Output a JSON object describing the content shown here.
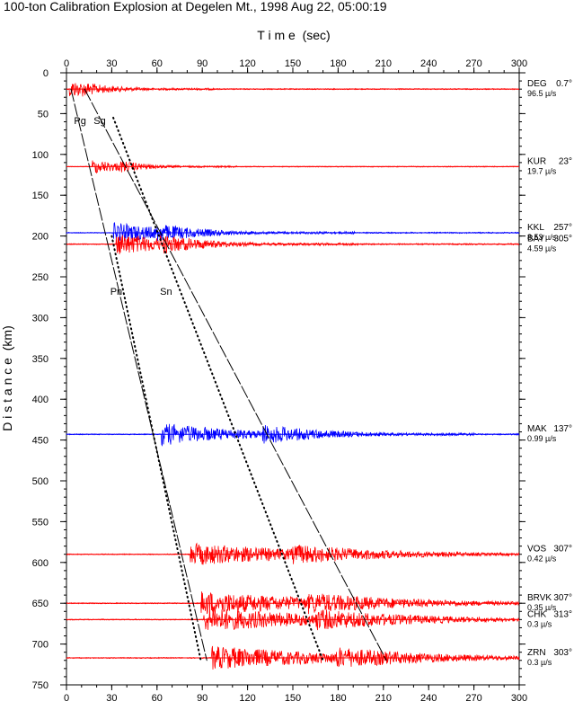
{
  "chart_data": {
    "type": "line",
    "title": "100-ton Calibration Explosion at Degelen Mt., 1998 Aug 22, 05:00:19",
    "xlabel": "T i m e  (sec)",
    "ylabel": "D i s t a n c e  (km)",
    "xlim": [
      0,
      300
    ],
    "ylim": [
      0,
      750
    ],
    "x_ticks": [
      0,
      30,
      60,
      90,
      120,
      150,
      180,
      210,
      240,
      270,
      300
    ],
    "y_ticks": [
      0,
      50,
      100,
      150,
      200,
      250,
      300,
      350,
      400,
      450,
      500,
      550,
      600,
      650,
      700,
      750
    ],
    "grid": false,
    "series": [
      {
        "station": "DEG",
        "azimuth": "0.7°",
        "amp": "96.5 µ/s",
        "distance_km": 20,
        "color": "#ff0000",
        "onset_sec": 2,
        "duration_sec": 60,
        "secondary_sec": 10,
        "amplitude_km": 11
      },
      {
        "station": "KUR",
        "azimuth": "23°",
        "amp": "19.7 µ/s",
        "distance_km": 115,
        "color": "#ff0000",
        "onset_sec": 17,
        "duration_sec": 60,
        "secondary_sec": 35,
        "amplitude_km": 9
      },
      {
        "station": "KKL",
        "azimuth": "257°",
        "amp": "8.53 µ/s",
        "distance_km": 196,
        "color": "#0000ff",
        "onset_sec": 31,
        "duration_sec": 100,
        "secondary_sec": 60,
        "amplitude_km": 13
      },
      {
        "station": "BAY",
        "azimuth": "305°",
        "amp": "4.59 µ/s",
        "distance_km": 210,
        "color": "#ff0000",
        "onset_sec": 33,
        "duration_sec": 100,
        "secondary_sec": 62,
        "amplitude_km": 14
      },
      {
        "station": "MAK",
        "azimuth": "137°",
        "amp": "0.99 µ/s",
        "distance_km": 443,
        "color": "#0000ff",
        "onset_sec": 63,
        "duration_sec": 130,
        "secondary_sec": 130,
        "amplitude_km": 14
      },
      {
        "station": "VOS",
        "azimuth": "307°",
        "amp": "0.42 µ/s",
        "distance_km": 590,
        "color": "#ff0000",
        "onset_sec": 82,
        "duration_sec": 200,
        "secondary_sec": 150,
        "amplitude_km": 14
      },
      {
        "station": "BRVK",
        "azimuth": "307°",
        "amp": "0.35 µ/s",
        "distance_km": 650,
        "color": "#ff0000",
        "onset_sec": 89,
        "duration_sec": 211,
        "secondary_sec": 160,
        "amplitude_km": 15
      },
      {
        "station": "CHK",
        "azimuth": "313°",
        "amp": "0.3 µ/s",
        "distance_km": 670,
        "color": "#ff0000",
        "onset_sec": 91,
        "duration_sec": 209,
        "secondary_sec": 165,
        "amplitude_km": 15
      },
      {
        "station": "ZRN",
        "azimuth": "303°",
        "amp": "0.3 µ/s",
        "distance_km": 717,
        "color": "#ff0000",
        "onset_sec": 96,
        "duration_sec": 204,
        "secondary_sec": 178,
        "amplitude_km": 15
      }
    ],
    "travel_time_curves": [
      {
        "label": "Pg",
        "style": "dashed",
        "points": [
          [
            3,
            20
          ],
          [
            93,
            720
          ]
        ]
      },
      {
        "label": "Sg",
        "style": "dashed",
        "points": [
          [
            12,
            20
          ],
          [
            212,
            720
          ]
        ]
      },
      {
        "label": "Pn",
        "style": "dotted",
        "points": [
          [
            30,
            200
          ],
          [
            89,
            720
          ]
        ]
      },
      {
        "label": "Sn",
        "style": "dotted",
        "points": [
          [
            31,
            55
          ],
          [
            170,
            720
          ]
        ]
      }
    ],
    "phase_labels": [
      {
        "text": "Pg",
        "x": 5,
        "y": 63
      },
      {
        "text": "Sg",
        "x": 18,
        "y": 63
      },
      {
        "text": "Pn",
        "x": 29,
        "y": 272
      },
      {
        "text": "Sn",
        "x": 62,
        "y": 272
      }
    ]
  }
}
